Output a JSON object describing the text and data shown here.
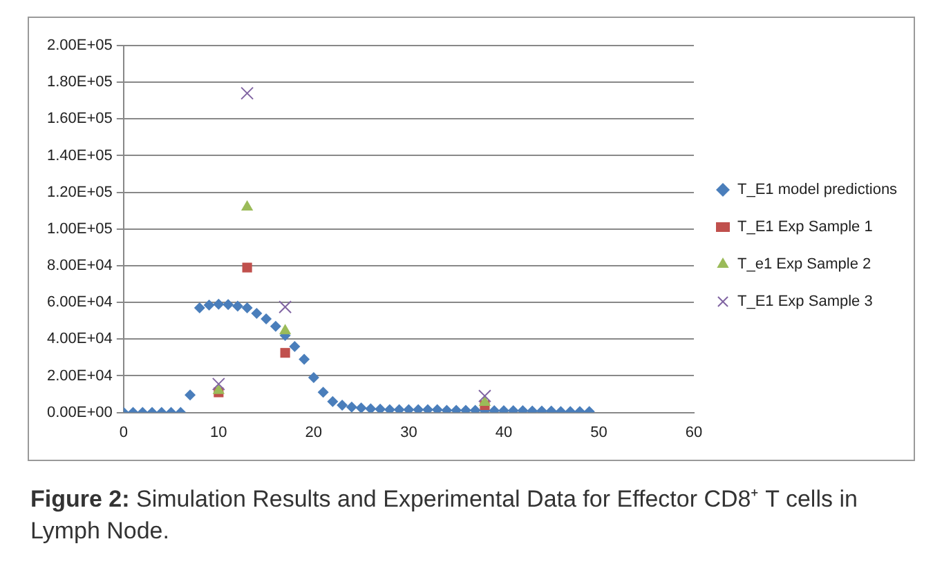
{
  "chart_data": {
    "type": "scatter",
    "annotations": [
      "Figure 2: Simulation Results and Experimental Data for Effector CD8⁺ T cells in Lymph Node."
    ],
    "xlim": [
      0,
      60
    ],
    "xticks": [
      0,
      10,
      20,
      30,
      40,
      50,
      60
    ],
    "ylim": [
      0,
      200000
    ],
    "yticks": [
      {
        "value": 0,
        "label": "0.00E+00"
      },
      {
        "value": 20000,
        "label": "2.00E+04"
      },
      {
        "value": 40000,
        "label": "4.00E+04"
      },
      {
        "value": 60000,
        "label": "6.00E+04"
      },
      {
        "value": 80000,
        "label": "8.00E+04"
      },
      {
        "value": 100000,
        "label": "1.00E+05"
      },
      {
        "value": 120000,
        "label": "1.20E+05"
      },
      {
        "value": 140000,
        "label": "1.40E+05"
      },
      {
        "value": 160000,
        "label": "1.60E+05"
      },
      {
        "value": 180000,
        "label": "1.80E+05"
      },
      {
        "value": 200000,
        "label": "2.00E+05"
      }
    ],
    "grid": "y",
    "legend": "right",
    "series": [
      {
        "name": "T_E1 model predictions",
        "color": "#4a7ebb",
        "marker": "diamond",
        "x": [
          0,
          1,
          2,
          3,
          4,
          5,
          6,
          7,
          8,
          9,
          10,
          11,
          12,
          13,
          14,
          15,
          16,
          17,
          18,
          19,
          20,
          21,
          22,
          23,
          24,
          25,
          26,
          27,
          28,
          29,
          30,
          31,
          32,
          33,
          34,
          35,
          36,
          37,
          38,
          39,
          40,
          41,
          42,
          43,
          44,
          45,
          46,
          47,
          48,
          49
        ],
        "values": [
          0,
          0,
          0,
          0,
          0,
          0,
          0,
          9500,
          57000,
          58500,
          59000,
          58800,
          58000,
          57000,
          54000,
          51000,
          47000,
          42000,
          36000,
          29000,
          19000,
          11000,
          6000,
          4000,
          3000,
          2500,
          2000,
          1800,
          1500,
          1500,
          1500,
          1500,
          1500,
          1500,
          1200,
          1200,
          1200,
          1200,
          1000,
          1000,
          1000,
          1000,
          1000,
          800,
          800,
          800,
          500,
          500,
          500,
          500
        ]
      },
      {
        "name": "T_E1 Exp Sample 1",
        "color": "#c0504d",
        "marker": "square",
        "x": [
          10,
          13,
          17,
          38
        ],
        "values": [
          11000,
          79000,
          32500,
          4000
        ]
      },
      {
        "name": "T_e1 Exp Sample 2",
        "color": "#9bbb59",
        "marker": "triangle",
        "x": [
          10,
          13,
          17,
          38
        ],
        "values": [
          12000,
          112000,
          44500,
          5500
        ]
      },
      {
        "name": "T_E1 Exp Sample 3",
        "color": "#8064a2",
        "marker": "cross",
        "x": [
          10,
          13,
          17,
          38
        ],
        "values": [
          15500,
          174000,
          57500,
          9000
        ]
      }
    ]
  }
}
